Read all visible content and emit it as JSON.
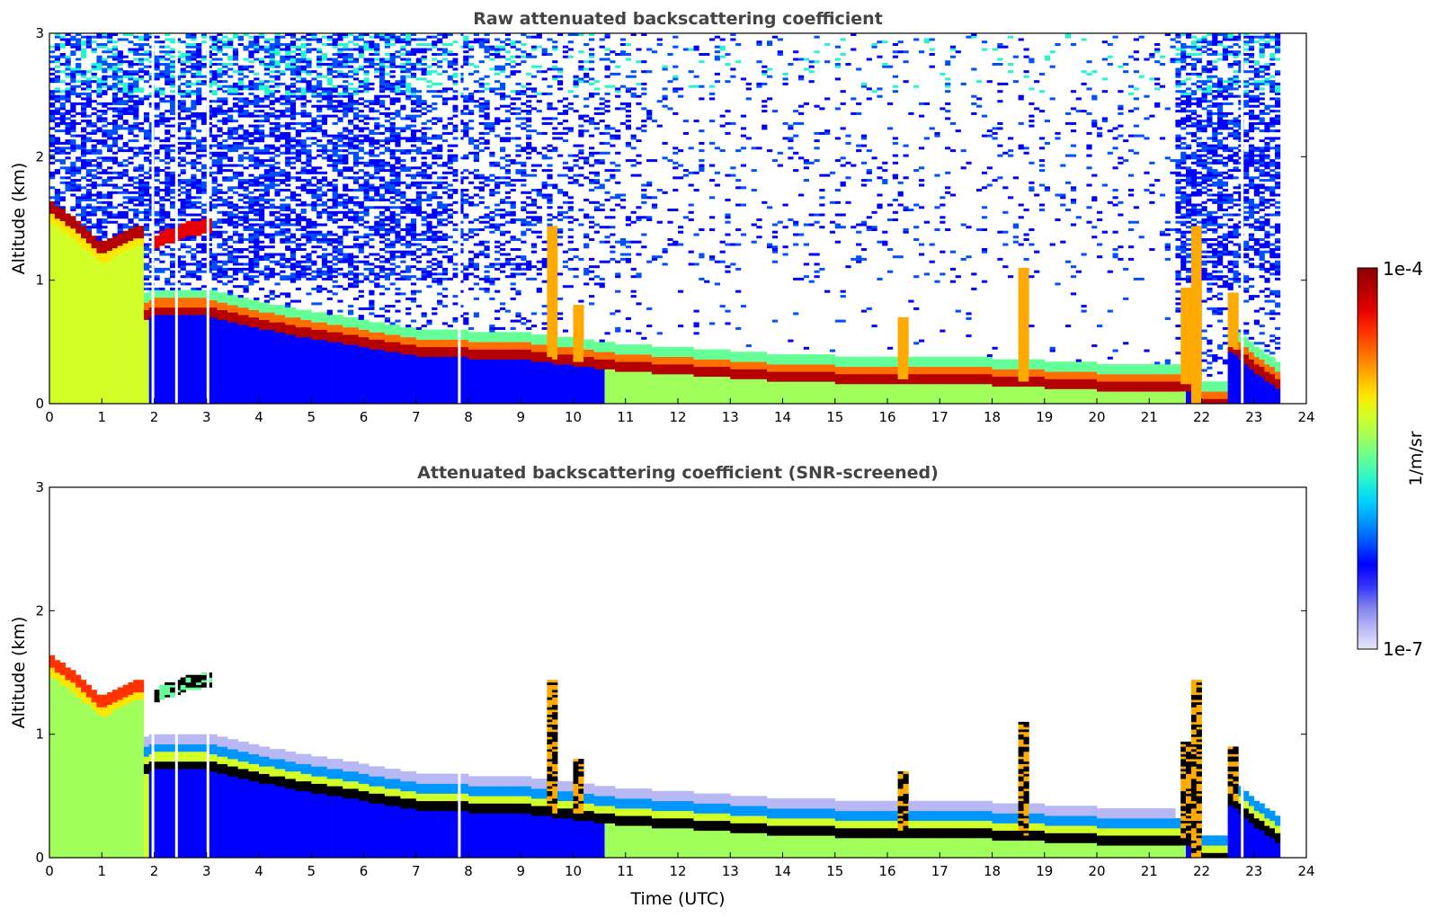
{
  "chart_data": [
    {
      "type": "heatmap",
      "title": "Raw attenuated backscattering coefficient",
      "xlabel": "",
      "ylabel": "Altitude (km)",
      "xlim": [
        0,
        24
      ],
      "ylim": [
        0,
        3
      ],
      "x_ticks": [
        "0",
        "1",
        "2",
        "3",
        "4",
        "5",
        "6",
        "7",
        "8",
        "9",
        "10",
        "11",
        "12",
        "13",
        "14",
        "15",
        "16",
        "17",
        "18",
        "19",
        "20",
        "21",
        "22",
        "23",
        "24"
      ],
      "y_ticks": [
        "0",
        "1",
        "2",
        "3"
      ],
      "data_end_x": 23.5,
      "gap_times": [
        1.95,
        2.4,
        3.0,
        7.8,
        22.75
      ],
      "features": {
        "upper_layer": [
          [
            0,
            1.6
          ],
          [
            0.5,
            1.45
          ],
          [
            1.0,
            1.25
          ],
          [
            1.4,
            1.35
          ],
          [
            1.7,
            1.4
          ]
        ],
        "upper_layer_2": [
          [
            2.0,
            1.3
          ],
          [
            2.5,
            1.4
          ],
          [
            3.1,
            1.45
          ]
        ],
        "main_layer": [
          [
            0,
            0.65
          ],
          [
            1,
            0.65
          ],
          [
            1.8,
            0.7
          ],
          [
            2,
            0.75
          ],
          [
            3,
            0.75
          ],
          [
            4,
            0.65
          ],
          [
            5,
            0.57
          ],
          [
            6,
            0.5
          ],
          [
            7,
            0.43
          ],
          [
            8,
            0.41
          ],
          [
            9,
            0.4
          ],
          [
            10,
            0.35
          ],
          [
            11,
            0.3
          ],
          [
            12,
            0.28
          ],
          [
            13,
            0.25
          ],
          [
            14,
            0.22
          ],
          [
            15,
            0.21
          ],
          [
            16,
            0.2
          ],
          [
            17,
            0.2
          ],
          [
            18,
            0.19
          ],
          [
            19,
            0.17
          ],
          [
            20,
            0.15
          ],
          [
            21,
            0.14
          ],
          [
            21.6,
            0.15
          ]
        ],
        "tail_layer": [
          [
            22.6,
            0.45
          ],
          [
            23.0,
            0.3
          ],
          [
            23.5,
            0.15
          ]
        ],
        "plumes": [
          [
            21.7,
            0.95
          ],
          [
            18.6,
            1.1
          ],
          [
            16.3,
            0.7
          ],
          [
            10.1,
            0.8
          ],
          [
            9.6,
            1.45
          ],
          [
            21.9,
            1.45
          ],
          [
            22.6,
            0.9
          ]
        ],
        "noise_decay_time": 12.5,
        "noise_return_time": 21.5
      }
    },
    {
      "type": "heatmap",
      "title": "Attenuated backscattering coefficient (SNR-screened)",
      "xlabel": "Time (UTC)",
      "ylabel": "Altitude (km)",
      "xlim": [
        0,
        24
      ],
      "ylim": [
        0,
        3
      ],
      "x_ticks": [
        "0",
        "1",
        "2",
        "3",
        "4",
        "5",
        "6",
        "7",
        "8",
        "9",
        "10",
        "11",
        "12",
        "13",
        "14",
        "15",
        "16",
        "17",
        "18",
        "19",
        "20",
        "21",
        "22",
        "23",
        "24"
      ],
      "y_ticks": [
        "0",
        "1",
        "2",
        "3"
      ],
      "data_end_x": 23.5,
      "gap_times": [
        1.95,
        2.4,
        3.0,
        7.8,
        22.75
      ],
      "screened": true
    }
  ],
  "colorbar": {
    "label": "1/m/sr",
    "min_label": "1e-7",
    "max_label": "1e-4",
    "colors": [
      "#e6e6fa",
      "#b8b8f5",
      "#8080f0",
      "#3232ff",
      "#0000ff",
      "#0050ff",
      "#0096ff",
      "#00d2ff",
      "#28f5cd",
      "#64ff96",
      "#a0ff5a",
      "#d2ff28",
      "#ffe600",
      "#ffaa00",
      "#ff6e00",
      "#ff3200",
      "#e60000",
      "#b40000",
      "#8b0000"
    ]
  }
}
